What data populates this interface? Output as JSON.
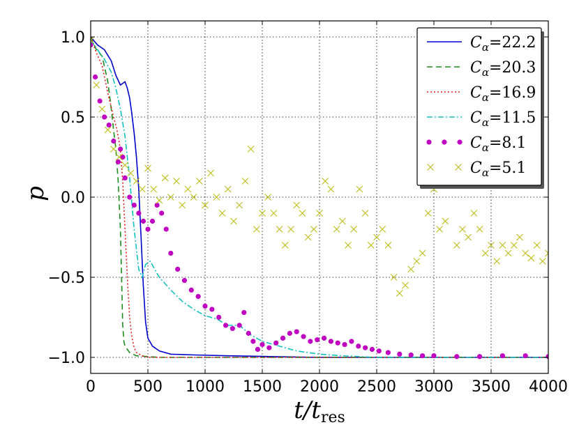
{
  "chart_data": {
    "type": "line",
    "title": "",
    "xlabel": "t/t_res",
    "xlabel_main": "t/t",
    "xlabel_sub": "res",
    "ylabel": "p",
    "xlim": [
      0,
      4000
    ],
    "ylim": [
      -1.1,
      1.1
    ],
    "xticks": [
      0,
      500,
      1000,
      1500,
      2000,
      2500,
      3000,
      3500,
      4000
    ],
    "xtick_labels": [
      "0",
      "500",
      "1000",
      "1500",
      "2000",
      "2500",
      "3000",
      "3500",
      "4000"
    ],
    "yticks": [
      -1.0,
      -0.5,
      0.0,
      0.5,
      1.0
    ],
    "ytick_labels": [
      "−1.0",
      "−0.5",
      "0.0",
      "0.5",
      "1.0"
    ],
    "grid": true,
    "legend_position": "top-right",
    "series": [
      {
        "name": "Cα=22.2",
        "label_prefix": "C",
        "label_sub": "α",
        "label_value": "=22.2",
        "color": "#0000cc",
        "style": "solid",
        "marker": "none",
        "x": [
          0,
          60,
          120,
          180,
          220,
          260,
          300,
          320,
          340,
          360,
          380,
          400,
          420,
          440,
          460,
          480,
          500,
          540,
          600,
          700,
          900,
          1200,
          1600,
          2000,
          3000,
          4000
        ],
        "y": [
          1.0,
          0.95,
          0.92,
          0.85,
          0.76,
          0.7,
          0.72,
          0.68,
          0.62,
          0.52,
          0.4,
          0.25,
          0.05,
          -0.25,
          -0.55,
          -0.78,
          -0.88,
          -0.93,
          -0.96,
          -0.98,
          -0.985,
          -0.99,
          -0.995,
          -1.0,
          -1.0,
          -1.0
        ]
      },
      {
        "name": "Cα=20.3",
        "label_prefix": "C",
        "label_sub": "α",
        "label_value": "=20.3",
        "color": "#1a8c1a",
        "style": "dashed",
        "marker": "none",
        "x": [
          0,
          50,
          100,
          150,
          180,
          200,
          220,
          240,
          260,
          270,
          280,
          290,
          300,
          340,
          400,
          600,
          1000,
          2000,
          3000,
          4000
        ],
        "y": [
          1.0,
          0.92,
          0.88,
          0.72,
          0.55,
          0.42,
          0.3,
          0.1,
          -0.2,
          -0.5,
          -0.8,
          -0.9,
          -0.93,
          -0.97,
          -0.99,
          -1.0,
          -1.0,
          -1.0,
          -1.0,
          -1.0
        ]
      },
      {
        "name": "Cα=16.9",
        "label_prefix": "C",
        "label_sub": "α",
        "label_value": "=16.9",
        "color": "#e81818",
        "style": "dotted",
        "marker": "none",
        "x": [
          0,
          50,
          100,
          150,
          200,
          230,
          260,
          280,
          300,
          320,
          340,
          360,
          380,
          400,
          450,
          500,
          600,
          1000,
          2000,
          3000,
          4000
        ],
        "y": [
          1.0,
          0.9,
          0.82,
          0.65,
          0.5,
          0.42,
          0.3,
          0.1,
          -0.2,
          -0.5,
          -0.75,
          -0.87,
          -0.94,
          -0.97,
          -0.99,
          -1.0,
          -1.0,
          -1.0,
          -1.0,
          -1.0,
          -1.0
        ]
      },
      {
        "name": "Cα=11.5",
        "label_prefix": "C",
        "label_sub": "α",
        "label_value": "=11.5",
        "color": "#12c0c0",
        "style": "dashdot",
        "marker": "none",
        "x": [
          0,
          60,
          120,
          180,
          220,
          260,
          300,
          340,
          380,
          420,
          450,
          480,
          520,
          600,
          700,
          800,
          900,
          1000,
          1100,
          1200,
          1300,
          1400,
          1500,
          1600,
          1700,
          1800,
          1900,
          2000,
          2200,
          2500,
          3000,
          4000
        ],
        "y": [
          0.98,
          0.92,
          0.86,
          0.78,
          0.68,
          0.55,
          0.38,
          0.12,
          -0.2,
          -0.45,
          -0.5,
          -0.42,
          -0.4,
          -0.5,
          -0.58,
          -0.65,
          -0.7,
          -0.74,
          -0.76,
          -0.8,
          -0.8,
          -0.86,
          -0.9,
          -0.92,
          -0.94,
          -0.96,
          -0.97,
          -0.98,
          -0.99,
          -1.0,
          -1.0,
          -1.0
        ]
      },
      {
        "name": "Cα=8.1",
        "label_prefix": "C",
        "label_sub": "α",
        "label_value": "=8.1",
        "color": "#c000c0",
        "style": "none",
        "marker": "dot",
        "x": [
          0,
          40,
          80,
          120,
          160,
          200,
          240,
          260,
          280,
          300,
          340,
          380,
          420,
          460,
          500,
          540,
          580,
          620,
          660,
          700,
          760,
          820,
          880,
          940,
          1000,
          1060,
          1120,
          1180,
          1240,
          1300,
          1340,
          1380,
          1420,
          1460,
          1500,
          1560,
          1620,
          1680,
          1740,
          1800,
          1860,
          1920,
          1980,
          2040,
          2100,
          2160,
          2220,
          2280,
          2340,
          2400,
          2460,
          2520,
          2600,
          2700,
          2800,
          2900,
          3000,
          3200,
          3400,
          3600,
          3800,
          4000
        ],
        "y": [
          0.95,
          0.75,
          0.6,
          0.5,
          0.45,
          0.35,
          0.22,
          0.3,
          0.25,
          0.12,
          0.0,
          -0.05,
          -0.1,
          -0.15,
          -0.2,
          -0.15,
          -0.05,
          -0.1,
          -0.2,
          -0.35,
          -0.45,
          -0.52,
          -0.58,
          -0.62,
          -0.68,
          -0.7,
          -0.75,
          -0.8,
          -0.82,
          -0.8,
          -0.72,
          -0.85,
          -0.9,
          -0.95,
          -0.92,
          -0.94,
          -0.91,
          -0.88,
          -0.85,
          -0.84,
          -0.87,
          -0.9,
          -0.89,
          -0.88,
          -0.9,
          -0.91,
          -0.92,
          -0.9,
          -0.93,
          -0.94,
          -0.95,
          -0.96,
          -0.97,
          -0.98,
          -0.985,
          -0.99,
          -0.99,
          -0.995,
          -0.995,
          -0.99,
          -0.99,
          -0.995
        ]
      },
      {
        "name": "Cα=5.1",
        "label_prefix": "C",
        "label_sub": "α",
        "label_value": "=5.1",
        "color": "#bfbf1f",
        "style": "none",
        "marker": "x",
        "x": [
          0,
          50,
          100,
          150,
          200,
          250,
          300,
          350,
          400,
          450,
          500,
          550,
          600,
          650,
          700,
          750,
          800,
          850,
          900,
          950,
          1000,
          1050,
          1100,
          1150,
          1200,
          1250,
          1300,
          1350,
          1400,
          1450,
          1500,
          1550,
          1600,
          1650,
          1700,
          1750,
          1800,
          1850,
          1900,
          1950,
          2000,
          2050,
          2100,
          2150,
          2200,
          2250,
          2300,
          2350,
          2400,
          2450,
          2500,
          2550,
          2600,
          2650,
          2700,
          2750,
          2800,
          2850,
          2900,
          2950,
          3000,
          3050,
          3100,
          3150,
          3200,
          3250,
          3300,
          3350,
          3400,
          3450,
          3500,
          3550,
          3600,
          3650,
          3700,
          3750,
          3800,
          3850,
          3900,
          3950,
          4000
        ],
        "y": [
          0.98,
          0.7,
          0.55,
          0.42,
          0.3,
          0.25,
          0.2,
          0.15,
          0.1,
          0.05,
          0.18,
          0.05,
          -0.02,
          0.12,
          0.0,
          0.1,
          -0.05,
          0.05,
          0.0,
          0.1,
          -0.05,
          0.15,
          0.0,
          -0.1,
          0.05,
          -0.15,
          -0.05,
          0.1,
          0.3,
          -0.2,
          -0.1,
          0.0,
          -0.1,
          -0.2,
          -0.3,
          -0.2,
          -0.05,
          -0.1,
          -0.25,
          -0.2,
          -0.1,
          0.1,
          0.05,
          -0.2,
          -0.15,
          -0.3,
          -0.2,
          0.05,
          -0.1,
          -0.3,
          -0.25,
          -0.2,
          -0.3,
          -0.5,
          -0.6,
          -0.55,
          -0.45,
          -0.4,
          -0.35,
          -0.1,
          0.05,
          -0.2,
          -0.15,
          0.1,
          -0.3,
          -0.2,
          -0.25,
          -0.1,
          -0.2,
          -0.35,
          -0.3,
          -0.4,
          -0.3,
          -0.35,
          -0.3,
          -0.25,
          -0.35,
          -0.38,
          -0.3,
          -0.4,
          -0.35
        ]
      }
    ]
  }
}
